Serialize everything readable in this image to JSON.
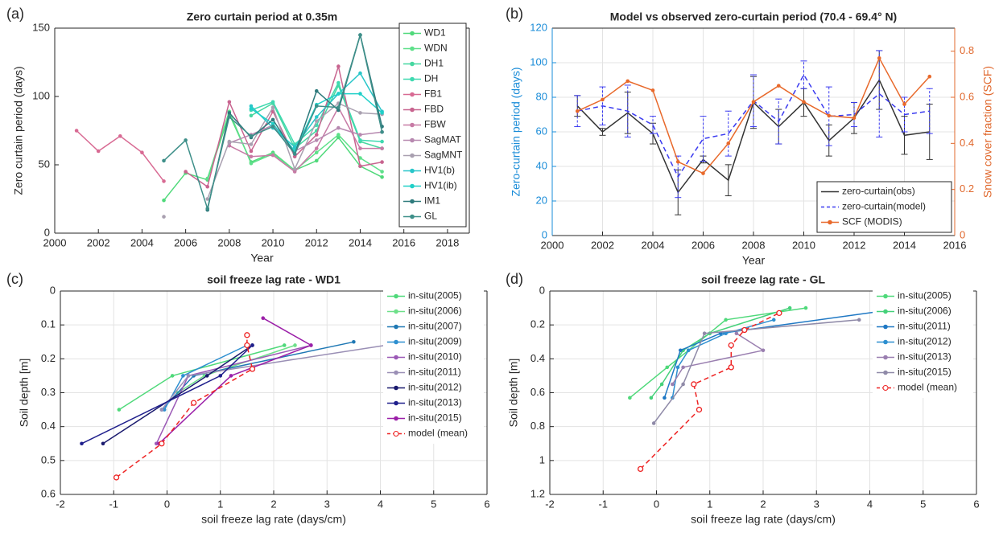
{
  "chart_data": [
    {
      "type": "line",
      "panel_label": "(a)",
      "title": "Zero curtain period at 0.35m",
      "xlabel": "Year",
      "ylabel": "Zero curtain period (days)",
      "x": [
        2001,
        2002,
        2003,
        2004,
        2005,
        2006,
        2007,
        2008,
        2009,
        2010,
        2011,
        2012,
        2013,
        2014,
        2015
      ],
      "xlim": [
        2000,
        2019
      ],
      "xticks": [
        2000,
        2002,
        2004,
        2006,
        2008,
        2010,
        2012,
        2014,
        2016,
        2018
      ],
      "ylim": [
        0,
        150
      ],
      "yticks": [
        0,
        50,
        100,
        150
      ],
      "grid": false,
      "legend": "upper right",
      "legend_frame": true,
      "series": [
        {
          "name": "WD1",
          "color": "#4fd97a",
          "marker": "dot",
          "values": [
            null,
            null,
            null,
            null,
            24,
            44,
            39,
            87,
            52,
            59,
            46,
            53,
            70,
            49,
            41
          ]
        },
        {
          "name": "WDN",
          "color": "#5ee08a",
          "marker": "dot",
          "values": [
            null,
            null,
            null,
            null,
            null,
            null,
            40,
            89,
            51,
            58,
            46,
            59,
            72,
            55,
            45
          ]
        },
        {
          "name": "DH1",
          "color": "#45d7a0",
          "marker": "dot",
          "values": [
            null,
            null,
            null,
            null,
            null,
            null,
            null,
            null,
            86,
            95,
            62,
            75,
            108,
            67,
            62
          ]
        },
        {
          "name": "DH",
          "color": "#3fd9b0",
          "marker": "dot",
          "values": [
            null,
            null,
            null,
            null,
            null,
            null,
            null,
            null,
            90,
            96,
            65,
            79,
            110,
            68,
            67
          ]
        },
        {
          "name": "FB1",
          "color": "#d86a93",
          "marker": "dot",
          "values": [
            75,
            60,
            71,
            59,
            38,
            null,
            null,
            null,
            null,
            null,
            null,
            null,
            null,
            null,
            null
          ]
        },
        {
          "name": "FBD",
          "color": "#c8648f",
          "marker": "dot",
          "values": [
            null,
            null,
            null,
            null,
            null,
            45,
            34,
            96,
            60,
            89,
            56,
            72,
            122,
            49,
            52
          ]
        },
        {
          "name": "FBW",
          "color": "#c77aa5",
          "marker": "dot",
          "values": [
            null,
            null,
            null,
            null,
            null,
            null,
            null,
            64,
            56,
            57,
            45,
            62,
            92,
            62,
            62
          ]
        },
        {
          "name": "SagMAT",
          "color": "#b789b0",
          "marker": "dot",
          "values": [
            null,
            null,
            null,
            null,
            null,
            null,
            null,
            66,
            72,
            79,
            60,
            68,
            77,
            72,
            74
          ]
        },
        {
          "name": "SagMNT",
          "color": "#a9a0b0",
          "marker": "dot",
          "values": [
            null,
            null,
            null,
            null,
            12,
            null,
            25,
            67,
            65,
            92,
            47,
            82,
            95,
            88,
            87
          ]
        },
        {
          "name": "HV1(b)",
          "color": "#29c6c9",
          "marker": "dot",
          "values": [
            null,
            null,
            null,
            null,
            null,
            null,
            null,
            null,
            93,
            77,
            63,
            85,
            102,
            117,
            89
          ]
        },
        {
          "name": "HV1(ib)",
          "color": "#20d0c8",
          "marker": "dot",
          "values": [
            null,
            null,
            null,
            null,
            null,
            null,
            null,
            null,
            91,
            80,
            60,
            94,
            102,
            102,
            88
          ]
        },
        {
          "name": "IM1",
          "color": "#2e7a7c",
          "marker": "dot",
          "values": [
            null,
            null,
            null,
            null,
            null,
            null,
            17,
            88,
            70,
            83,
            58,
            104,
            90,
            145,
            78
          ]
        },
        {
          "name": "GL",
          "color": "#3e8f89",
          "marker": "dot",
          "values": [
            null,
            null,
            null,
            null,
            53,
            68,
            18,
            85,
            71,
            78,
            58,
            93,
            92,
            145,
            74
          ]
        }
      ]
    },
    {
      "type": "line",
      "panel_label": "(b)",
      "title": "Model vs observed zero-curtain period (70.4 - 69.4° N)",
      "xlabel": "Year",
      "ylabel": "Zero-curtain period (days)",
      "y2label": "Snow cover fraction (SCF)",
      "x": [
        2001,
        2002,
        2003,
        2004,
        2005,
        2006,
        2007,
        2008,
        2009,
        2010,
        2011,
        2012,
        2013,
        2014,
        2015
      ],
      "xlim": [
        2000,
        2016
      ],
      "xticks": [
        2000,
        2002,
        2004,
        2006,
        2008,
        2010,
        2012,
        2014,
        2016
      ],
      "ylim": [
        0,
        120
      ],
      "yticks": [
        0,
        20,
        40,
        60,
        80,
        100,
        120
      ],
      "y_color": "#1a8cd8",
      "y2lim": [
        0,
        0.9
      ],
      "y2ticks": [
        0,
        0.2,
        0.4,
        0.6,
        0.8
      ],
      "y2_color": "#e0682d",
      "grid": true,
      "legend": "lower right",
      "legend_frame": true,
      "series": [
        {
          "name": "zero-curtain(obs)",
          "color": "#333333",
          "values": [
            75,
            60,
            71,
            59,
            25,
            44,
            32,
            77,
            63,
            77,
            55,
            68,
            90,
            58,
            60
          ],
          "errors": [
            6,
            2,
            12,
            6,
            13,
            2,
            9,
            15,
            10,
            8,
            9,
            9,
            17,
            11,
            16
          ]
        },
        {
          "name": "zero-curtain(model)",
          "color": "#3a3af0",
          "dash": true,
          "values": [
            72,
            75,
            72,
            64,
            34,
            56,
            59,
            78,
            66,
            93,
            69,
            70,
            82,
            70,
            72
          ],
          "errors": [
            9,
            11,
            15,
            5,
            12,
            13,
            13,
            15,
            13,
            8,
            17,
            7,
            25,
            10,
            13
          ]
        },
        {
          "name": "SCF (MODIS)",
          "color": "#e8692b",
          "marker": "dot",
          "axis": "y2",
          "values": [
            0.54,
            0.59,
            0.67,
            0.63,
            0.32,
            0.27,
            0.4,
            0.58,
            0.65,
            0.58,
            0.52,
            0.51,
            0.77,
            0.57,
            0.69
          ]
        }
      ]
    },
    {
      "type": "line",
      "panel_label": "(c)",
      "title": "soil freeze lag rate - WD1",
      "xlabel": "soil freeze lag rate (days/cm)",
      "ylabel": "Soil depth [m]",
      "xlim": [
        -2,
        6
      ],
      "xticks": [
        -2,
        -1,
        0,
        1,
        2,
        3,
        4,
        5,
        6
      ],
      "ylim": [
        0,
        0.6
      ],
      "yticks": [
        0,
        0.1,
        0.2,
        0.3,
        0.4,
        0.5,
        0.6
      ],
      "y_reversed": true,
      "grid": true,
      "legend": "upper right",
      "legend_frame": false,
      "series": [
        {
          "name": "in-situ(2005)",
          "color": "#4fd97a",
          "marker": "dot",
          "x": [
            -0.9,
            0.1,
            2.2
          ],
          "y": [
            0.35,
            0.25,
            0.16
          ]
        },
        {
          "name": "in-situ(2006)",
          "color": "#6ee08a",
          "marker": "dot",
          "x": [
            0.2,
            0.7,
            2.4
          ],
          "y": [
            0.3,
            0.25,
            0.16
          ]
        },
        {
          "name": "in-situ(2007)",
          "color": "#1f78b4",
          "marker": "dot",
          "x": [
            -0.1,
            0.5,
            3.5
          ],
          "y": [
            0.35,
            0.25,
            0.15
          ]
        },
        {
          "name": "in-situ(2009)",
          "color": "#2d8fd0",
          "marker": "dot",
          "x": [
            -0.05,
            0.3,
            1.5
          ],
          "y": [
            0.35,
            0.25,
            0.16
          ]
        },
        {
          "name": "in-situ(2010)",
          "color": "#9b59b6",
          "marker": "dot",
          "x": [
            -0.2,
            0.4,
            2.7
          ],
          "y": [
            0.45,
            0.25,
            0.16
          ]
        },
        {
          "name": "in-situ(2011)",
          "color": "#9a8fb5",
          "marker": "dot",
          "x": [
            -0.1,
            0.4,
            4.1
          ],
          "y": [
            0.35,
            0.25,
            0.16
          ]
        },
        {
          "name": "in-situ(2012)",
          "color": "#1a1a6e",
          "marker": "dot",
          "x": [
            -1.2,
            0.75,
            1.6
          ],
          "y": [
            0.45,
            0.25,
            0.16
          ]
        },
        {
          "name": "in-situ(2013)",
          "color": "#1f1f8c",
          "marker": "dot",
          "x": [
            -1.6,
            1.0,
            1.6
          ],
          "y": [
            0.45,
            0.25,
            0.16
          ]
        },
        {
          "name": "in-situ(2015)",
          "color": "#9b1fa8",
          "marker": "dot",
          "x": [
            -0.15,
            1.2,
            2.7,
            1.8
          ],
          "y": [
            0.45,
            0.25,
            0.16,
            0.08
          ]
        },
        {
          "name": "model (mean)",
          "color": "#ee2222",
          "dash": true,
          "marker": "circle",
          "x": [
            -0.95,
            -0.1,
            0.5,
            1.6,
            1.5,
            1.5
          ],
          "y": [
            0.55,
            0.45,
            0.33,
            0.23,
            0.16,
            0.13
          ]
        }
      ]
    },
    {
      "type": "line",
      "panel_label": "(d)",
      "title": "soil freeze lag rate - GL",
      "xlabel": "soil freeze lag rate (days/cm)",
      "ylabel": "Soil depth [m]",
      "xlim": [
        -2,
        6
      ],
      "xticks": [
        -2,
        -1,
        0,
        1,
        2,
        3,
        4,
        5,
        6
      ],
      "ylim": [
        0,
        1.2
      ],
      "yticks": [
        0,
        0.2,
        0.4,
        0.6,
        0.8,
        1,
        1.2
      ],
      "y_reversed": true,
      "grid": true,
      "legend": "upper right",
      "legend_frame": false,
      "series": [
        {
          "name": "in-situ(2005)",
          "color": "#4fd97a",
          "marker": "dot",
          "x": [
            -0.5,
            0.2,
            0.6,
            1.3,
            2.8
          ],
          "y": [
            0.63,
            0.45,
            0.35,
            0.17,
            0.1
          ]
        },
        {
          "name": "in-situ(2006)",
          "color": "#45d17a",
          "marker": "dot",
          "x": [
            -0.1,
            0.1,
            0.5,
            1.0,
            2.5
          ],
          "y": [
            0.63,
            0.55,
            0.35,
            0.25,
            0.1
          ]
        },
        {
          "name": "in-situ(2011)",
          "color": "#1f78c4",
          "marker": "dot",
          "x": [
            0.15,
            0.45,
            1.2,
            4.2
          ],
          "y": [
            0.63,
            0.35,
            0.25,
            0.12
          ]
        },
        {
          "name": "in-situ(2012)",
          "color": "#2d8fd0",
          "marker": "dot",
          "x": [
            0.3,
            0.4,
            0.6,
            1.3,
            2.2
          ],
          "y": [
            0.63,
            0.45,
            0.35,
            0.25,
            0.17
          ]
        },
        {
          "name": "in-situ(2013)",
          "color": "#9a7fb0",
          "marker": "dot",
          "x": [
            0.3,
            0.5,
            2.0,
            1.5
          ],
          "y": [
            0.55,
            0.45,
            0.35,
            0.25
          ]
        },
        {
          "name": "in-situ(2015)",
          "color": "#8f8aa8",
          "marker": "dot",
          "x": [
            -0.05,
            0.5,
            0.9,
            3.8
          ],
          "y": [
            0.78,
            0.55,
            0.25,
            0.17
          ]
        },
        {
          "name": "model (mean)",
          "color": "#ee2222",
          "dash": true,
          "marker": "circle",
          "x": [
            -0.3,
            0.8,
            0.7,
            1.4,
            1.4,
            1.65,
            2.3
          ],
          "y": [
            1.05,
            0.7,
            0.55,
            0.45,
            0.32,
            0.23,
            0.13
          ]
        }
      ]
    }
  ]
}
